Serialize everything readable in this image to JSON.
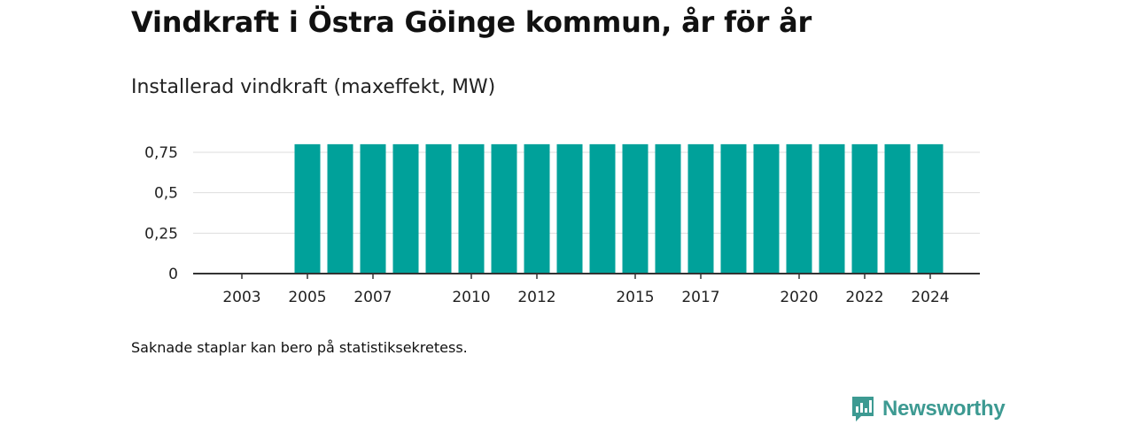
{
  "title": "Vindkraft i Östra Göinge kommun, år för år",
  "subtitle": "Installerad vindkraft (maxeffekt, MW)",
  "footnote": "Saknade staplar kan bero på statistiksekretess.",
  "brand": {
    "name": "Newsworthy",
    "icon": "newsworthy-logo-icon"
  },
  "colors": {
    "bar": "#00a19a",
    "grid": "#dddddd",
    "axis": "#333333",
    "brand": "#3d9a92"
  },
  "chart_data": {
    "type": "bar",
    "title": "Installerad vindkraft (maxeffekt, MW)",
    "categories": [
      "2003",
      "2004",
      "2005",
      "2006",
      "2007",
      "2008",
      "2009",
      "2010",
      "2011",
      "2012",
      "2013",
      "2014",
      "2015",
      "2016",
      "2017",
      "2018",
      "2019",
      "2020",
      "2021",
      "2022",
      "2023",
      "2024"
    ],
    "values": [
      null,
      null,
      0.8,
      0.8,
      0.8,
      0.8,
      0.8,
      0.8,
      0.8,
      0.8,
      0.8,
      0.8,
      0.8,
      0.8,
      0.8,
      0.8,
      0.8,
      0.8,
      0.8,
      0.8,
      0.8,
      0.8
    ],
    "x_tick_labels": [
      "2003",
      "2005",
      "2007",
      "2010",
      "2012",
      "2015",
      "2017",
      "2020",
      "2022",
      "2024"
    ],
    "y_ticks": [
      0,
      0.25,
      0.5,
      0.75
    ],
    "y_tick_labels": [
      "0",
      "0,25",
      "0,5",
      "0,75"
    ],
    "ylim": [
      0,
      0.8
    ],
    "grid": true,
    "legend": "none"
  }
}
